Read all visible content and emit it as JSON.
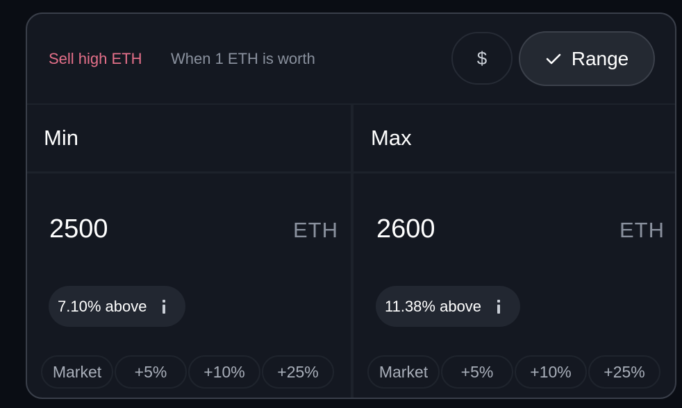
{
  "header": {
    "sell_label": "Sell high ETH",
    "worth_label": "When 1 ETH is worth",
    "currency_button": "$",
    "range_button": "Range"
  },
  "min": {
    "title": "Min",
    "value": "2500",
    "unit": "ETH",
    "badge": "7.10% above",
    "quick": [
      "Market",
      "+5%",
      "+10%",
      "+25%"
    ]
  },
  "max": {
    "title": "Max",
    "value": "2600",
    "unit": "ETH",
    "badge": "11.38% above",
    "quick": [
      "Market",
      "+5%",
      "+10%",
      "+25%"
    ]
  },
  "colors": {
    "accent_sell": "#e5708a",
    "card_bg": "#141821",
    "page_bg": "#0a0d14"
  },
  "icons": {
    "range_check": "check-icon",
    "badge_info": "info-icon"
  }
}
